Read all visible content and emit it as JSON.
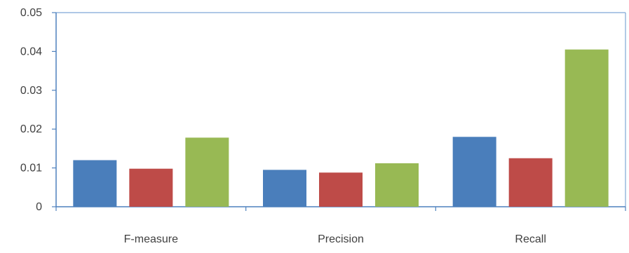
{
  "chart_data": {
    "type": "bar",
    "title": "",
    "xlabel": "",
    "ylabel": "",
    "categories": [
      "F-measure",
      "Precision",
      "Recall"
    ],
    "series": [
      {
        "color": "#4a7ebb",
        "values": [
          0.012,
          0.0095,
          0.018
        ]
      },
      {
        "color": "#be4b48",
        "values": [
          0.0098,
          0.0088,
          0.0125
        ]
      },
      {
        "color": "#98b954",
        "values": [
          0.0178,
          0.0112,
          0.0405
        ]
      }
    ],
    "ylim": [
      0,
      0.05
    ],
    "yticks": [
      "0",
      "0.01",
      "0.02",
      "0.03",
      "0.04",
      "0.05"
    ],
    "grid": false,
    "legend": "none"
  },
  "colors": {
    "axis": "#4f81bd",
    "frame": "#7fa7d6",
    "label": "#404040"
  }
}
